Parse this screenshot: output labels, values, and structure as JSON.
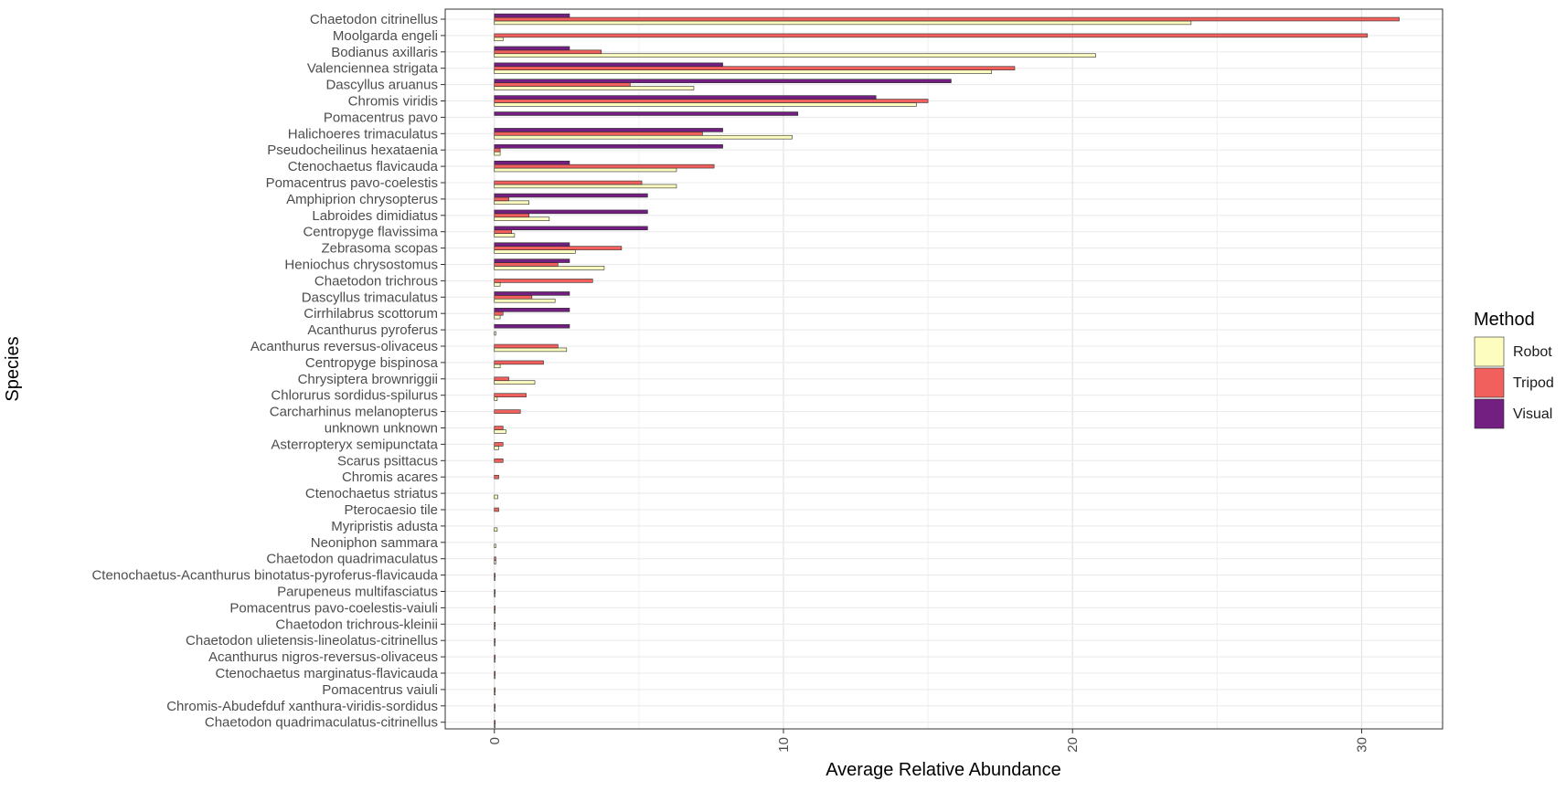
{
  "chart_data": {
    "type": "bar",
    "orientation": "horizontal",
    "xlabel": "Average Relative Abundance",
    "ylabel": "Species",
    "xlim": [
      -1.7,
      32.8
    ],
    "x_ticks": [
      0,
      10,
      20,
      30
    ],
    "grid": true,
    "legend": {
      "title": "Method",
      "placement": "right"
    },
    "categories": [
      "Chaetodon citrinellus",
      "Moolgarda engeli",
      "Bodianus axillaris",
      "Valenciennea strigata",
      "Dascyllus aruanus",
      "Chromis viridis",
      "Pomacentrus pavo",
      "Halichoeres trimaculatus",
      "Pseudocheilinus hexataenia",
      "Ctenochaetus flavicauda",
      "Pomacentrus pavo-coelestis",
      "Amphiprion chrysopterus",
      "Labroides dimidiatus",
      "Centropyge flavissima",
      "Zebrasoma scopas",
      "Heniochus chrysostomus",
      "Chaetodon trichrous",
      "Dascyllus trimaculatus",
      "Cirrhilabrus scottorum",
      "Acanthurus pyroferus",
      "Acanthurus reversus-olivaceus",
      "Centropyge bispinosa",
      "Chrysiptera brownriggii",
      "Chlorurus sordidus-spilurus",
      "Carcharhinus melanopterus",
      "unknown unknown",
      "Asterropteryx semipunctata",
      "Scarus psittacus",
      "Chromis acares",
      "Ctenochaetus striatus",
      "Pterocaesio tile",
      "Myripristis adusta",
      "Neoniphon sammara",
      "Chaetodon quadrimaculatus",
      "Ctenochaetus-Acanthurus binotatus-pyroferus-flavicauda",
      "Parupeneus multifasciatus",
      "Pomacentrus pavo-coelestis-vaiuli",
      "Chaetodon trichrous-kleinii",
      "Chaetodon ulietensis-lineolatus-citrinellus",
      "Acanthurus nigros-reversus-olivaceus",
      "Ctenochaetus marginatus-flavicauda",
      "Pomacentrus vaiuli",
      "Chromis-Abudefduf xanthura-viridis-sordidus",
      "Chaetodon quadrimaculatus-citrinellus"
    ],
    "series": [
      {
        "name": "Robot",
        "color": "#FCFDBF",
        "values": [
          24.1,
          0.3,
          20.8,
          17.2,
          6.9,
          14.6,
          0,
          10.3,
          0.2,
          6.3,
          6.3,
          1.2,
          1.9,
          0.7,
          2.8,
          3.8,
          0.2,
          2.1,
          0.2,
          0.05,
          2.5,
          0.2,
          1.4,
          0.1,
          0,
          0.4,
          0.15,
          0,
          0,
          0.12,
          0,
          0.1,
          0.05,
          0.05,
          0.03,
          0.03,
          0.03,
          0.03,
          0.03,
          0.03,
          0.03,
          0.03,
          0.03,
          0.03
        ]
      },
      {
        "name": "Tripod",
        "color": "#F1605D",
        "values": [
          31.3,
          30.2,
          3.7,
          18.0,
          4.7,
          15.0,
          0,
          7.2,
          0.2,
          7.6,
          5.1,
          0.5,
          1.2,
          0.6,
          4.4,
          2.2,
          3.4,
          1.3,
          0.3,
          0,
          2.2,
          1.7,
          0.5,
          1.1,
          0.9,
          0.3,
          0.3,
          0.3,
          0.15,
          0,
          0.15,
          0,
          0,
          0.05,
          0.03,
          0.03,
          0.03,
          0.03,
          0.03,
          0.03,
          0.03,
          0.03,
          0.03,
          0.03
        ]
      },
      {
        "name": "Visual",
        "color": "#721F81",
        "values": [
          2.6,
          0,
          2.6,
          7.9,
          15.8,
          13.2,
          10.5,
          7.9,
          7.9,
          2.6,
          0,
          5.3,
          5.3,
          5.3,
          2.6,
          2.6,
          0,
          2.6,
          2.6,
          2.6,
          0,
          0,
          0,
          0,
          0,
          0,
          0,
          0,
          0,
          0,
          0,
          0,
          0,
          0,
          0,
          0,
          0,
          0,
          0,
          0,
          0,
          0,
          0,
          0
        ]
      }
    ]
  }
}
